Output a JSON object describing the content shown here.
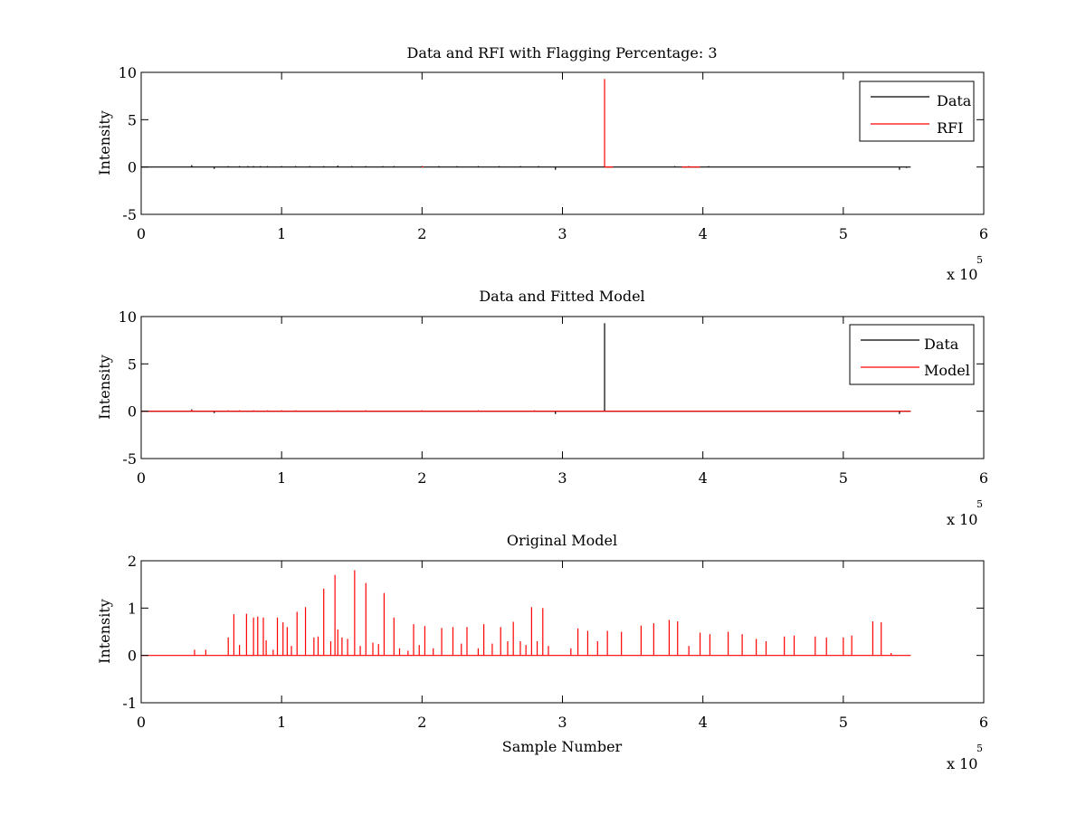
{
  "chart_data": [
    {
      "type": "line",
      "title": "Data and RFI with Flagging Percentage: 3",
      "xlabel": "",
      "ylabel": "Intensity",
      "xlim": [
        0,
        600000
      ],
      "ylim": [
        -5,
        10
      ],
      "xticks": [
        0,
        1,
        2,
        3,
        4,
        5,
        6
      ],
      "yticks": [
        -5,
        0,
        5,
        10
      ],
      "x_multiplier": "x 10",
      "x_multiplier_exp": "5",
      "legend": {
        "placement": "top-right",
        "entries": [
          "Data",
          "RFI"
        ]
      },
      "grid": false,
      "series": [
        {
          "name": "Data",
          "color": "#000000",
          "baseline": 0,
          "end_x": 548000,
          "spikes": [
            [
              36000,
              0.2
            ],
            [
              52000,
              -0.2
            ],
            [
              62000,
              0.1
            ],
            [
              70000,
              0.1
            ],
            [
              76000,
              0.1
            ],
            [
              80000,
              0.1
            ],
            [
              85000,
              0.1
            ],
            [
              90000,
              0.1
            ],
            [
              100000,
              0.1
            ],
            [
              110000,
              0.1
            ],
            [
              120000,
              0.1
            ],
            [
              130000,
              0.1
            ],
            [
              140000,
              0.15
            ],
            [
              150000,
              0.1
            ],
            [
              160000,
              0.1
            ],
            [
              172000,
              0.1
            ],
            [
              180000,
              0.1
            ],
            [
              200000,
              0.1
            ],
            [
              212000,
              0.1
            ],
            [
              225000,
              0.1
            ],
            [
              240000,
              0.1
            ],
            [
              255000,
              0.1
            ],
            [
              270000,
              0.1
            ],
            [
              283000,
              0.1
            ],
            [
              295000,
              -0.3
            ],
            [
              380000,
              0.1
            ],
            [
              390000,
              0.1
            ],
            [
              404000,
              0.1
            ],
            [
              540000,
              -0.3
            ],
            [
              545000,
              -0.1
            ]
          ]
        },
        {
          "name": "RFI",
          "color": "#ff0000",
          "baseline": null,
          "spikes": [
            [
              330000,
              9.3
            ]
          ],
          "segments": [
            [
              [
                200000,
                0
              ],
              [
                201000,
                0.05
              ]
            ],
            [
              [
                330000,
                0
              ],
              [
                336000,
                0
              ]
            ],
            [
              [
                385000,
                0
              ],
              [
                398000,
                0
              ]
            ]
          ]
        }
      ]
    },
    {
      "type": "line",
      "title": "Data and Fitted Model",
      "xlabel": "",
      "ylabel": "Intensity",
      "xlim": [
        0,
        600000
      ],
      "ylim": [
        -5,
        10
      ],
      "xticks": [
        0,
        1,
        2,
        3,
        4,
        5,
        6
      ],
      "yticks": [
        -5,
        0,
        5,
        10
      ],
      "x_multiplier": "x 10",
      "x_multiplier_exp": "5",
      "legend": {
        "placement": "top-right",
        "entries": [
          "Data",
          "Model"
        ]
      },
      "grid": false,
      "series": [
        {
          "name": "Data",
          "color": "#000000",
          "baseline": 0,
          "end_x": 548000,
          "spikes": [
            [
              36000,
              0.2
            ],
            [
              52000,
              -0.2
            ],
            [
              295000,
              -0.3
            ],
            [
              330000,
              9.3
            ],
            [
              540000,
              -0.3
            ]
          ]
        },
        {
          "name": "Model",
          "color": "#ff0000",
          "baseline": 0,
          "end_x": 548000,
          "spikes": [
            [
              36000,
              0.15
            ],
            [
              62000,
              0.1
            ],
            [
              70000,
              0.1
            ],
            [
              80000,
              0.1
            ],
            [
              90000,
              0.1
            ],
            [
              100000,
              0.1
            ],
            [
              110000,
              0.1
            ],
            [
              140000,
              0.1
            ],
            [
              160000,
              0.1
            ],
            [
              200000,
              0.1
            ],
            [
              240000,
              0.1
            ],
            [
              280000,
              0.1
            ],
            [
              380000,
              0.05
            ],
            [
              420000,
              0.05
            ],
            [
              460000,
              0.05
            ],
            [
              500000,
              0.05
            ]
          ]
        }
      ]
    },
    {
      "type": "line",
      "title": "Original Model",
      "xlabel": "Sample Number",
      "ylabel": "Intensity",
      "xlim": [
        0,
        600000
      ],
      "ylim": [
        -1,
        2
      ],
      "xticks": [
        0,
        1,
        2,
        3,
        4,
        5,
        6
      ],
      "yticks": [
        -1,
        0,
        1,
        2
      ],
      "x_multiplier": "x 10",
      "x_multiplier_exp": "5",
      "legend": null,
      "grid": false,
      "series": [
        {
          "name": "",
          "color": "#ff0000",
          "baseline": 0,
          "end_x": 548000,
          "spikes": [
            [
              38000,
              0.12
            ],
            [
              46000,
              0.12
            ],
            [
              62000,
              0.38
            ],
            [
              66000,
              0.87
            ],
            [
              70000,
              0.22
            ],
            [
              75000,
              0.88
            ],
            [
              80000,
              0.8
            ],
            [
              83000,
              0.82
            ],
            [
              87000,
              0.8
            ],
            [
              89000,
              0.32
            ],
            [
              94000,
              0.12
            ],
            [
              97000,
              0.8
            ],
            [
              101000,
              0.7
            ],
            [
              104000,
              0.6
            ],
            [
              107000,
              0.2
            ],
            [
              111000,
              0.92
            ],
            [
              117000,
              1.02
            ],
            [
              123000,
              0.38
            ],
            [
              126000,
              0.4
            ],
            [
              130000,
              1.41
            ],
            [
              135000,
              0.3
            ],
            [
              138000,
              1.7
            ],
            [
              140000,
              0.55
            ],
            [
              143000,
              0.38
            ],
            [
              147000,
              0.35
            ],
            [
              152000,
              1.8
            ],
            [
              156000,
              0.2
            ],
            [
              160000,
              1.53
            ],
            [
              165000,
              0.27
            ],
            [
              169000,
              0.24
            ],
            [
              173000,
              1.32
            ],
            [
              180000,
              0.8
            ],
            [
              184000,
              0.15
            ],
            [
              190000,
              0.1
            ],
            [
              194000,
              0.66
            ],
            [
              198000,
              0.22
            ],
            [
              202000,
              0.62
            ],
            [
              208000,
              0.15
            ],
            [
              214000,
              0.58
            ],
            [
              222000,
              0.6
            ],
            [
              228000,
              0.25
            ],
            [
              232000,
              0.6
            ],
            [
              240000,
              0.15
            ],
            [
              244000,
              0.66
            ],
            [
              250000,
              0.25
            ],
            [
              256000,
              0.6
            ],
            [
              261000,
              0.3
            ],
            [
              265000,
              0.71
            ],
            [
              270000,
              0.3
            ],
            [
              274000,
              0.22
            ],
            [
              278000,
              1.02
            ],
            [
              282000,
              0.3
            ],
            [
              286000,
              1.0
            ],
            [
              290000,
              0.2
            ],
            [
              306000,
              0.15
            ],
            [
              311000,
              0.57
            ],
            [
              318000,
              0.52
            ],
            [
              325000,
              0.3
            ],
            [
              332000,
              0.52
            ],
            [
              342000,
              0.5
            ],
            [
              356000,
              0.63
            ],
            [
              365000,
              0.68
            ],
            [
              376000,
              0.75
            ],
            [
              382000,
              0.72
            ],
            [
              390000,
              0.2
            ],
            [
              398000,
              0.48
            ],
            [
              405000,
              0.45
            ],
            [
              418000,
              0.5
            ],
            [
              428000,
              0.45
            ],
            [
              438000,
              0.35
            ],
            [
              445000,
              0.3
            ],
            [
              458000,
              0.4
            ],
            [
              465000,
              0.42
            ],
            [
              480000,
              0.4
            ],
            [
              488000,
              0.38
            ],
            [
              500000,
              0.38
            ],
            [
              506000,
              0.42
            ],
            [
              521000,
              0.72
            ],
            [
              527000,
              0.7
            ],
            [
              534000,
              0.05
            ]
          ]
        }
      ]
    }
  ]
}
